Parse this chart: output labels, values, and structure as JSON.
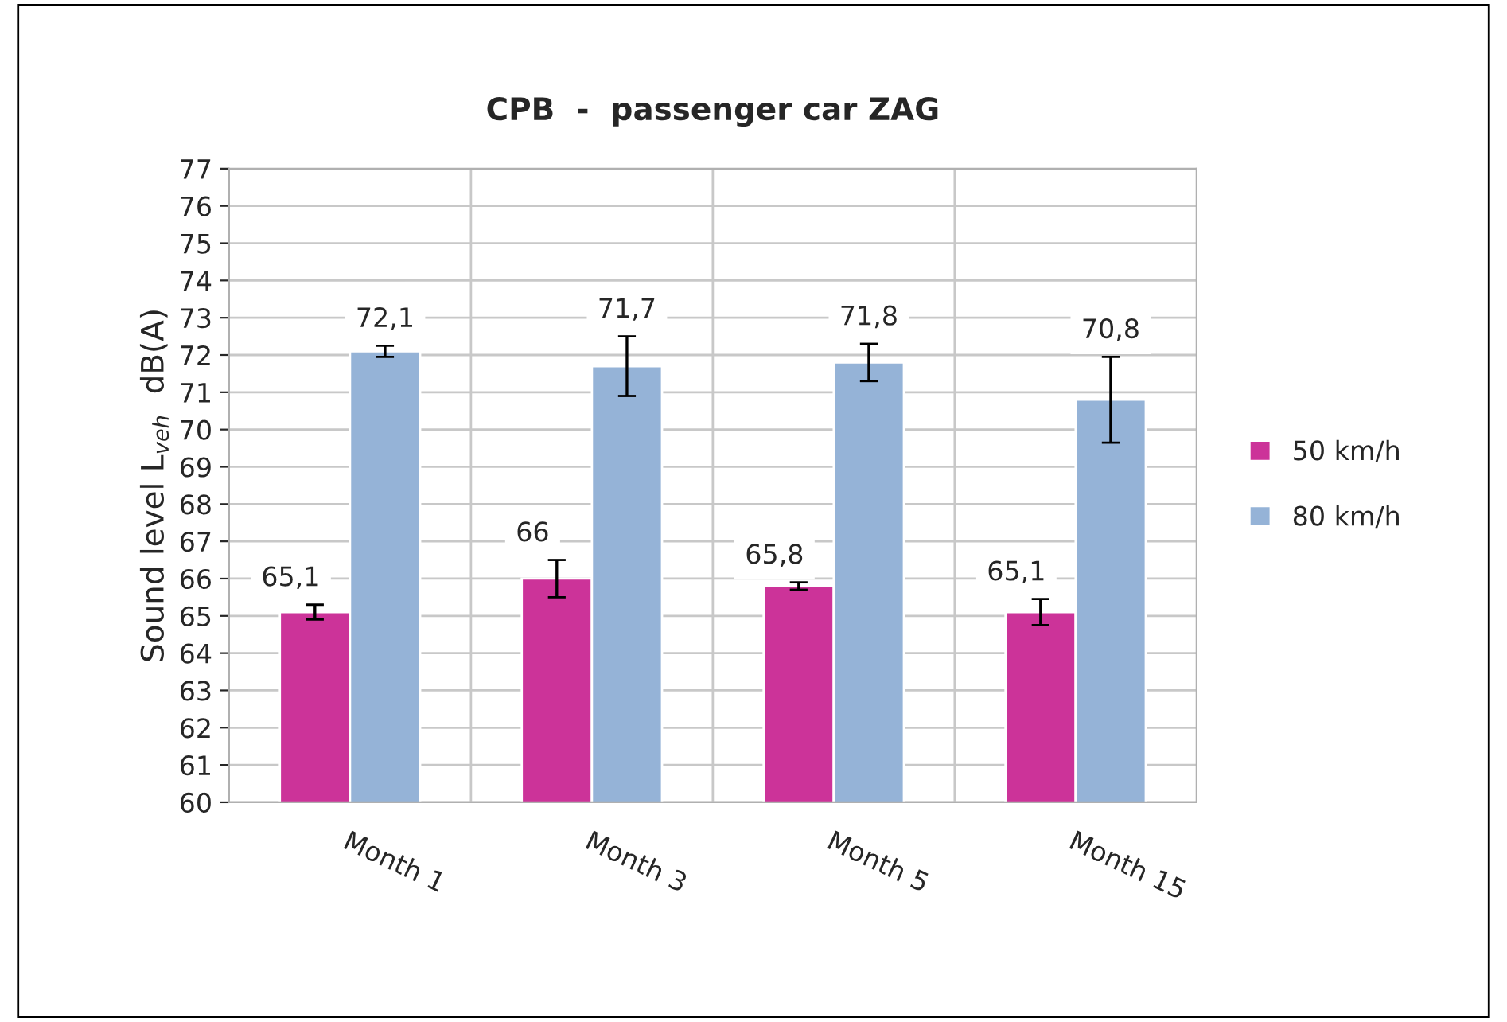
{
  "chart_data": {
    "type": "bar",
    "title": "CPB  -  passenger car ZAG",
    "ylabel": "Sound level L$_{veh}$  dB(A)",
    "categories": [
      "Month 1",
      "Month 3",
      "Month 5",
      "Month 15"
    ],
    "series": [
      {
        "name": "50 km/h",
        "color": "#cc3399",
        "values": [
          65.1,
          66,
          65.8,
          65.1
        ],
        "errors": [
          0.2,
          0.5,
          0.1,
          0.35
        ],
        "value_labels": [
          "65,1",
          "66",
          "65,8",
          "65,1"
        ]
      },
      {
        "name": "80 km/h",
        "color": "#95b3d7",
        "values": [
          72.1,
          71.7,
          71.8,
          70.8
        ],
        "errors": [
          0.15,
          0.8,
          0.5,
          1.15
        ],
        "value_labels": [
          "72,1",
          "71,7",
          "71,8",
          "70,8"
        ]
      }
    ],
    "ylim": [
      60,
      77
    ],
    "yticks": [
      60,
      61,
      62,
      63,
      64,
      65,
      66,
      67,
      68,
      69,
      70,
      71,
      72,
      73,
      74,
      75,
      76,
      77
    ],
    "grid": true,
    "legend": "right"
  }
}
